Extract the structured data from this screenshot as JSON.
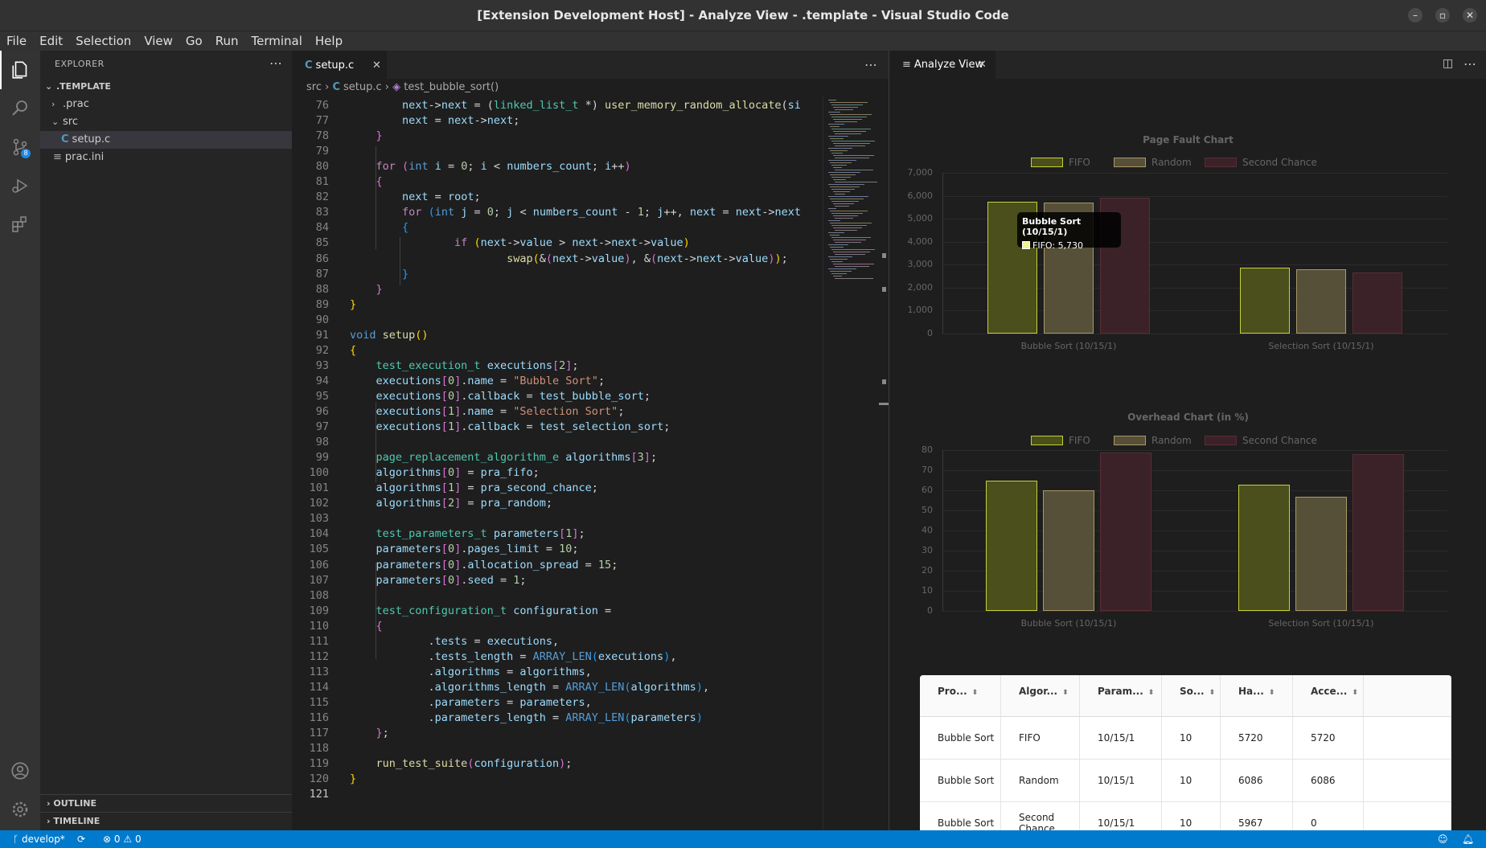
{
  "window": {
    "title": "[Extension Development Host] - Analyze View - .template - Visual Studio Code"
  },
  "menu": [
    "File",
    "Edit",
    "Selection",
    "View",
    "Go",
    "Run",
    "Terminal",
    "Help"
  ],
  "activity": {
    "scm_badge": "8"
  },
  "sidebar": {
    "header": "EXPLORER",
    "root": ".TEMPLATE",
    "tree": [
      ".prac",
      "src",
      "setup.c",
      "prac.ini"
    ],
    "outline": "OUTLINE",
    "timeline": "TIMELINE"
  },
  "editor": {
    "tab_label": "setup.c",
    "breadcrumb": {
      "folder": "src",
      "file": "setup.c",
      "symbol": "test_bubble_sort()"
    }
  },
  "code_lines": [
    {
      "n": "76",
      "html": "    <span class=\"va\">next</span>-><span class=\"va\">next</span> = (<span class=\"ty\">linked_list_t</span> *) <span class=\"fn\">user_memory_random_allocate</span>(<span class=\"va\">si</span>"
    },
    {
      "n": "77",
      "html": "    <span class=\"va\">next</span> = <span class=\"va\">next</span>-><span class=\"va\">next</span>;"
    },
    {
      "n": "78",
      "html": "  <span class=\"br2\">}</span>"
    },
    {
      "n": "79",
      "html": ""
    },
    {
      "n": "80",
      "html": "  <span class=\"kc\">for</span> <span class=\"br2\">(</span><span class=\"kw\">int</span> <span class=\"va\">i</span> = <span class=\"nu\">0</span>; <span class=\"va\">i</span> &lt; <span class=\"va\">numbers_count</span>; <span class=\"va\">i</span>++<span class=\"br2\">)</span>"
    },
    {
      "n": "81",
      "html": "  <span class=\"br2\">{</span>"
    },
    {
      "n": "82",
      "html": "    <span class=\"va\">next</span> = <span class=\"va\">root</span>;"
    },
    {
      "n": "83",
      "html": "    <span class=\"kc\">for</span> <span class=\"br3\">(</span><span class=\"kw\">int</span> <span class=\"va\">j</span> = <span class=\"nu\">0</span>; <span class=\"va\">j</span> &lt; <span class=\"va\">numbers_count</span> - <span class=\"nu\">1</span>; <span class=\"va\">j</span>++, <span class=\"va\">next</span> = <span class=\"va\">next</span>-><span class=\"va\">next</span>"
    },
    {
      "n": "84",
      "html": "    <span class=\"br3\">{</span>"
    },
    {
      "n": "85",
      "html": "        <span class=\"kc\">if</span> <span class=\"br1\">(</span><span class=\"va\">next</span>-><span class=\"va\">value</span> &gt; <span class=\"va\">next</span>-><span class=\"va\">next</span>-><span class=\"va\">value</span><span class=\"br1\">)</span>"
    },
    {
      "n": "86",
      "html": "            <span class=\"fn\">swap</span><span class=\"br1\">(</span>&amp;<span class=\"br2\">(</span><span class=\"va\">next</span>-><span class=\"va\">value</span><span class=\"br2\">)</span>, &amp;<span class=\"br2\">(</span><span class=\"va\">next</span>-><span class=\"va\">next</span>-><span class=\"va\">value</span><span class=\"br2\">)</span><span class=\"br1\">)</span>;"
    },
    {
      "n": "87",
      "html": "    <span class=\"br3\">}</span>"
    },
    {
      "n": "88",
      "html": "  <span class=\"br2\">}</span>"
    },
    {
      "n": "89",
      "html": "<span class=\"br1\">}</span>"
    },
    {
      "n": "90",
      "html": ""
    },
    {
      "n": "91",
      "html": "<span class=\"kw\">void</span> <span class=\"fn\">setup</span><span class=\"br1\">()</span>"
    },
    {
      "n": "92",
      "html": "<span class=\"br1\">{</span>"
    },
    {
      "n": "93",
      "html": "  <span class=\"ty\">test_execution_t</span> <span class=\"va\">executions</span><span class=\"br2\">[</span><span class=\"nu\">2</span><span class=\"br2\">]</span>;"
    },
    {
      "n": "94",
      "html": "  <span class=\"va\">executions</span><span class=\"br2\">[</span><span class=\"nu\">0</span><span class=\"br2\">]</span>.<span class=\"va\">name</span> = <span class=\"st\">\"Bubble Sort\"</span>;"
    },
    {
      "n": "95",
      "html": "  <span class=\"va\">executions</span><span class=\"br2\">[</span><span class=\"nu\">0</span><span class=\"br2\">]</span>.<span class=\"va\">callback</span> = <span class=\"va\">test_bubble_sort</span>;"
    },
    {
      "n": "96",
      "html": "  <span class=\"va\">executions</span><span class=\"br2\">[</span><span class=\"nu\">1</span><span class=\"br2\">]</span>.<span class=\"va\">name</span> = <span class=\"st\">\"Selection Sort\"</span>;"
    },
    {
      "n": "97",
      "html": "  <span class=\"va\">executions</span><span class=\"br2\">[</span><span class=\"nu\">1</span><span class=\"br2\">]</span>.<span class=\"va\">callback</span> = <span class=\"va\">test_selection_sort</span>;"
    },
    {
      "n": "98",
      "html": ""
    },
    {
      "n": "99",
      "html": "  <span class=\"ty\">page_replacement_algorithm_e</span> <span class=\"va\">algorithms</span><span class=\"br2\">[</span><span class=\"nu\">3</span><span class=\"br2\">]</span>;"
    },
    {
      "n": "100",
      "html": "  <span class=\"va\">algorithms</span><span class=\"br2\">[</span><span class=\"nu\">0</span><span class=\"br2\">]</span> = <span class=\"va\">pra_fifo</span>;"
    },
    {
      "n": "101",
      "html": "  <span class=\"va\">algorithms</span><span class=\"br2\">[</span><span class=\"nu\">1</span><span class=\"br2\">]</span> = <span class=\"va\">pra_second_chance</span>;"
    },
    {
      "n": "102",
      "html": "  <span class=\"va\">algorithms</span><span class=\"br2\">[</span><span class=\"nu\">2</span><span class=\"br2\">]</span> = <span class=\"va\">pra_random</span>;"
    },
    {
      "n": "103",
      "html": ""
    },
    {
      "n": "104",
      "html": "  <span class=\"ty\">test_parameters_t</span> <span class=\"va\">parameters</span><span class=\"br2\">[</span><span class=\"nu\">1</span><span class=\"br2\">]</span>;"
    },
    {
      "n": "105",
      "html": "  <span class=\"va\">parameters</span><span class=\"br2\">[</span><span class=\"nu\">0</span><span class=\"br2\">]</span>.<span class=\"va\">pages_limit</span> = <span class=\"nu\">10</span>;"
    },
    {
      "n": "106",
      "html": "  <span class=\"va\">parameters</span><span class=\"br2\">[</span><span class=\"nu\">0</span><span class=\"br2\">]</span>.<span class=\"va\">allocation_spread</span> = <span class=\"nu\">15</span>;"
    },
    {
      "n": "107",
      "html": "  <span class=\"va\">parameters</span><span class=\"br2\">[</span><span class=\"nu\">0</span><span class=\"br2\">]</span>.<span class=\"va\">seed</span> = <span class=\"nu\">1</span>;"
    },
    {
      "n": "108",
      "html": ""
    },
    {
      "n": "109",
      "html": "  <span class=\"ty\">test_configuration_t</span> <span class=\"va\">configuration</span> ="
    },
    {
      "n": "110",
      "html": "  <span class=\"br2\">{</span>"
    },
    {
      "n": "111",
      "html": "      .<span class=\"va\">tests</span> = <span class=\"va\">executions</span>,"
    },
    {
      "n": "112",
      "html": "      .<span class=\"va\">tests_length</span> = <span class=\"kw\">ARRAY_LEN</span><span class=\"br3\">(</span><span class=\"va\">executions</span><span class=\"br3\">)</span>,"
    },
    {
      "n": "113",
      "html": "      .<span class=\"va\">algorithms</span> = <span class=\"va\">algorithms</span>,"
    },
    {
      "n": "114",
      "html": "      .<span class=\"va\">algorithms_length</span> = <span class=\"kw\">ARRAY_LEN</span><span class=\"br3\">(</span><span class=\"va\">algorithms</span><span class=\"br3\">)</span>,"
    },
    {
      "n": "115",
      "html": "      .<span class=\"va\">parameters</span> = <span class=\"va\">parameters</span>,"
    },
    {
      "n": "116",
      "html": "      .<span class=\"va\">parameters_length</span> = <span class=\"kw\">ARRAY_LEN</span><span class=\"br3\">(</span><span class=\"va\">parameters</span><span class=\"br3\">)</span>"
    },
    {
      "n": "117",
      "html": "  <span class=\"br2\">}</span>;"
    },
    {
      "n": "118",
      "html": ""
    },
    {
      "n": "119",
      "html": "  <span class=\"fn\">run_test_suite</span><span class=\"br2\">(</span><span class=\"va\">configuration</span><span class=\"br2\">)</span>;"
    },
    {
      "n": "120",
      "html": "<span class=\"br1\">}</span>"
    },
    {
      "n": "121",
      "html": ""
    }
  ],
  "panel": {
    "tab_label": "Analyze View"
  },
  "chart_data": [
    {
      "type": "bar",
      "title": "Page Fault Chart",
      "categories": [
        "Bubble Sort (10/15/1)",
        "Selection Sort (10/15/1)"
      ],
      "series": [
        {
          "name": "FIFO",
          "values": [
            5730,
            2880
          ],
          "fill": "#4a4f1c",
          "stroke": "#c5d13a"
        },
        {
          "name": "Random",
          "values": [
            5700,
            2790
          ],
          "fill": "#575038",
          "stroke": "#a89968"
        },
        {
          "name": "Second Chance",
          "values": [
            5930,
            2650
          ],
          "fill": "#3a2228",
          "stroke": "#5a2c36"
        }
      ],
      "ylim": [
        0,
        7000
      ],
      "yticks": [
        "7,000",
        "6,000",
        "5,000",
        "4,000",
        "3,000",
        "2,000",
        "1,000",
        "0"
      ],
      "tooltip": {
        "title": "Bubble Sort (10/15/1)",
        "text": "FIFO: 5,730"
      }
    },
    {
      "type": "bar",
      "title": "Overhead Chart (in %)",
      "categories": [
        "Bubble Sort (10/15/1)",
        "Selection Sort (10/15/1)"
      ],
      "series": [
        {
          "name": "FIFO",
          "values": [
            65,
            63
          ],
          "fill": "#4a4f1c",
          "stroke": "#c5d13a"
        },
        {
          "name": "Random",
          "values": [
            60,
            57
          ],
          "fill": "#575038",
          "stroke": "#a89968"
        },
        {
          "name": "Second Chance",
          "values": [
            79,
            78
          ],
          "fill": "#3a2228",
          "stroke": "#5a2c36"
        }
      ],
      "ylim": [
        0,
        80
      ],
      "yticks": [
        "80",
        "70",
        "60",
        "50",
        "40",
        "30",
        "20",
        "10",
        "0"
      ]
    }
  ],
  "table": {
    "headers": [
      "Pro...",
      "Algor...",
      "Param...",
      "So...",
      "Ha...",
      "Acce..."
    ],
    "rows": [
      [
        "Bubble Sort",
        "FIFO",
        "10/15/1",
        "10",
        "5720",
        "5720"
      ],
      [
        "Bubble Sort",
        "Random",
        "10/15/1",
        "10",
        "6086",
        "6086"
      ],
      [
        "Bubble Sort",
        "Second Chance",
        "10/15/1",
        "10",
        "5967",
        "0"
      ]
    ]
  },
  "status": {
    "branch": "develop*",
    "errors": "0",
    "warnings": "0"
  }
}
